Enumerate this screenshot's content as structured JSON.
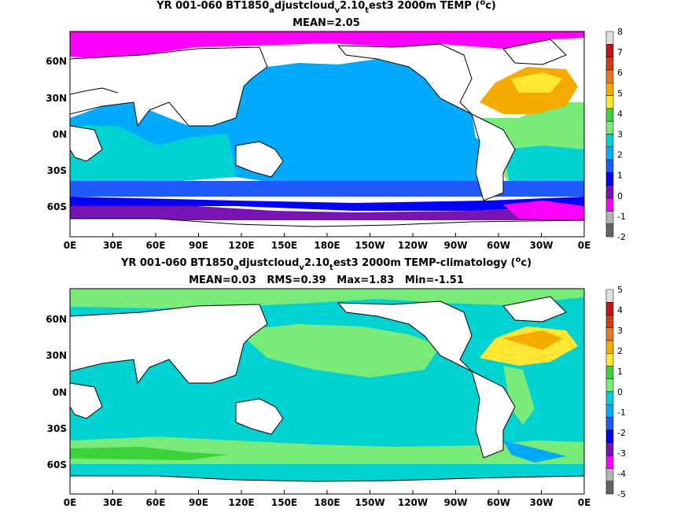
{
  "top": {
    "title": {
      "prefix": "YR 001-060 BT1850",
      "sub1": "a",
      "mid1": "djustcloud",
      "sub2": "v",
      "mid2": "2.10",
      "sub3": "t",
      "tail": "est3 2000m TEMP (",
      "sup": "o",
      "close": "c)"
    },
    "stats": "MEAN=2.05",
    "colorbar": {
      "levels": [
        "8",
        "7",
        "6",
        "5",
        "4",
        "3",
        "2",
        "1",
        "0",
        "-1",
        "-2"
      ],
      "colors": [
        "#e0e0e0",
        "#c81414",
        "#d23c14",
        "#e6781e",
        "#f5aa00",
        "#ffe632",
        "#3cd23c",
        "#78eb78",
        "#00d2d2",
        "#00aaff",
        "#1e5aff",
        "#0000ff",
        "#7814b4",
        "#ff00ff",
        "#b4b4b4",
        "#646464"
      ]
    }
  },
  "bottom": {
    "title": {
      "prefix": "YR 001-060 BT1850",
      "sub1": "a",
      "mid1": "djustcloud",
      "sub2": "v",
      "mid2": "2.10",
      "sub3": "t",
      "tail": "est3 2000m TEMP-climatology (",
      "sup": "o",
      "close": "c)"
    },
    "stats": "MEAN=0.03   RMS=0.39   Max=1.83   Min=-1.51",
    "colorbar": {
      "levels": [
        "5",
        "4",
        "3",
        "2",
        "1",
        "0",
        "-1",
        "-2",
        "-3",
        "-4",
        "-5"
      ],
      "colors": [
        "#e0e0e0",
        "#c81414",
        "#d23c14",
        "#e6781e",
        "#f5aa00",
        "#ffe632",
        "#3cd23c",
        "#78eb78",
        "#00d2d2",
        "#00aaff",
        "#1e5aff",
        "#0000ff",
        "#7814b4",
        "#ff00ff",
        "#b4b4b4",
        "#646464"
      ]
    }
  },
  "axes": {
    "x_ticks": [
      "0E",
      "30E",
      "60E",
      "90E",
      "120E",
      "150E",
      "180E",
      "150W",
      "120W",
      "90W",
      "60W",
      "30W",
      "0E"
    ],
    "y_ticks": [
      "60N",
      "30N",
      "0N",
      "30S",
      "60S"
    ]
  }
}
